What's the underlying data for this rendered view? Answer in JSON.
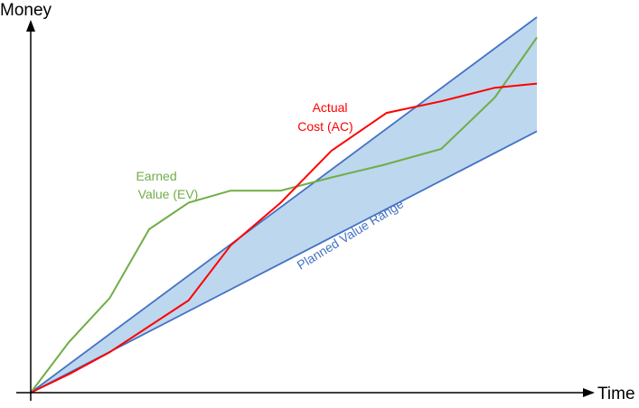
{
  "chart_data": {
    "type": "line",
    "xlabel": "Time",
    "ylabel": "Money",
    "xlim": [
      0,
      100
    ],
    "ylim": [
      0,
      100
    ],
    "grid": false,
    "colors": {
      "band_fill": "#bdd7ee",
      "band_edge": "#4472c4",
      "earned_value": "#70ad47",
      "actual_cost": "#ff0000",
      "band_label": "#4472c4",
      "axis": "#000000"
    },
    "planned_value_range": {
      "label": "Planned Value Range",
      "upper": [
        [
          0,
          0
        ],
        [
          100,
          100
        ]
      ],
      "lower": [
        [
          0,
          0
        ],
        [
          100,
          69.6
        ]
      ]
    },
    "series": [
      {
        "name": "Earned Value (EV)",
        "label_lines": [
          "Earned",
          "Value (EV)"
        ],
        "points": [
          [
            0,
            0
          ],
          [
            7.5,
            13.4
          ],
          [
            15.6,
            25.2
          ],
          [
            23.4,
            43.5
          ],
          [
            31.2,
            50.6
          ],
          [
            39.5,
            53.8
          ],
          [
            49.4,
            53.8
          ],
          [
            59.4,
            57.3
          ],
          [
            69.6,
            60.6
          ],
          [
            81.1,
            64.9
          ],
          [
            91.7,
            78.6
          ],
          [
            100,
            94.6
          ]
        ]
      },
      {
        "name": "Actual Cost (AC)",
        "label_lines": [
          "Actual",
          "Cost (AC)"
        ],
        "points": [
          [
            0,
            0
          ],
          [
            7.8,
            5.1
          ],
          [
            15.6,
            10.8
          ],
          [
            31.2,
            24.6
          ],
          [
            39.5,
            39.2
          ],
          [
            49.4,
            50.6
          ],
          [
            59.4,
            64.4
          ],
          [
            70.3,
            74.5
          ],
          [
            81.1,
            77.6
          ],
          [
            91.7,
            81.2
          ],
          [
            100,
            82.3
          ]
        ]
      }
    ]
  }
}
